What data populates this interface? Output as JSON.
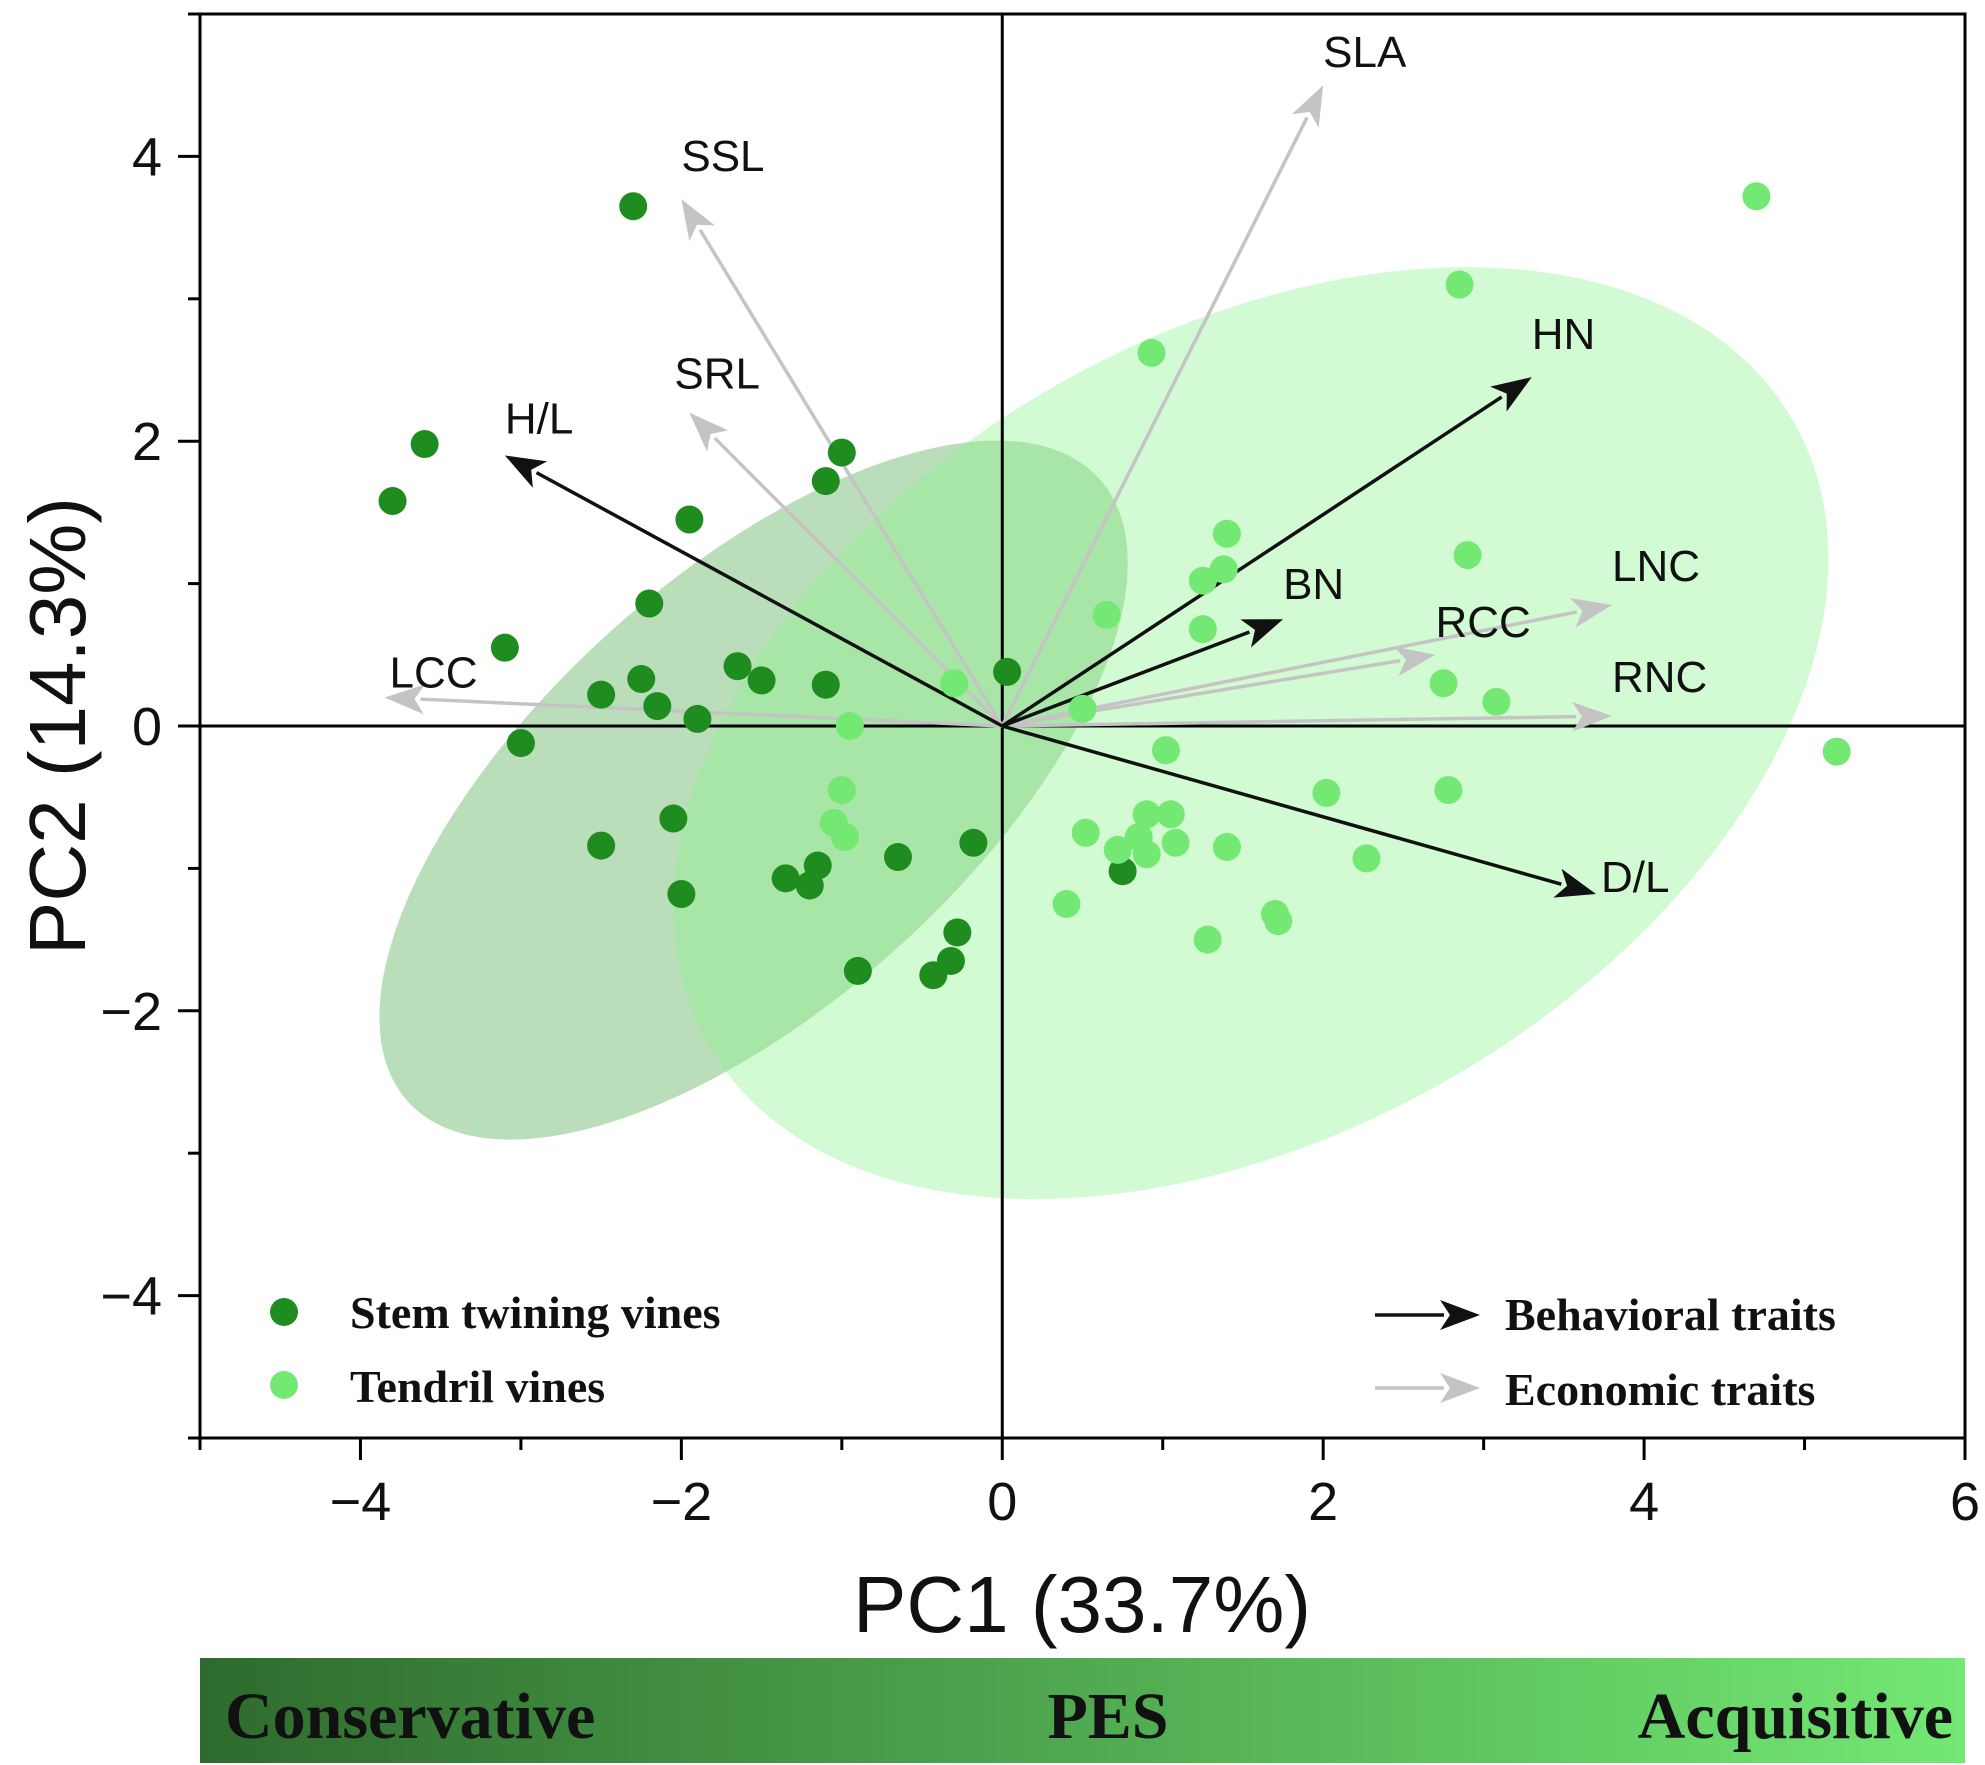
{
  "chart_data": {
    "type": "scatter",
    "xlabel": "PC1 (33.7%)",
    "ylabel": "PC2 (14.3%)",
    "xlim": [
      -5,
      6
    ],
    "ylim": [
      -5,
      5
    ],
    "x_ticks": [
      -4,
      -2,
      0,
      2,
      4,
      6
    ],
    "y_ticks": [
      -4,
      -2,
      0,
      2,
      4
    ],
    "x_tick_labels": [
      "−4",
      "−2",
      "0",
      "2",
      "4",
      "6"
    ],
    "y_tick_labels": [
      "−4",
      "−2",
      "0",
      "2",
      "4"
    ],
    "series": [
      {
        "name": "Stem twining vines",
        "color": "#1e8c1e",
        "ellipse": {
          "cx": -1.55,
          "cy": -0.45,
          "rx": 2.9,
          "ry": 1.5,
          "angle_deg": -42
        },
        "points": [
          [
            -2.3,
            3.65
          ],
          [
            -3.6,
            1.98
          ],
          [
            -3.8,
            1.58
          ],
          [
            -1.0,
            1.92
          ],
          [
            -1.1,
            1.72
          ],
          [
            -1.95,
            1.45
          ],
          [
            -2.2,
            0.86
          ],
          [
            -3.1,
            0.55
          ],
          [
            -1.65,
            0.42
          ],
          [
            -1.5,
            0.32
          ],
          [
            -2.25,
            0.33
          ],
          [
            -1.1,
            0.29
          ],
          [
            -2.5,
            0.22
          ],
          [
            -2.15,
            0.14
          ],
          [
            -1.9,
            0.05
          ],
          [
            -3.0,
            -0.12
          ],
          [
            -2.05,
            -0.65
          ],
          [
            -2.5,
            -0.84
          ],
          [
            -0.65,
            -0.92
          ],
          [
            -0.18,
            -0.82
          ],
          [
            -1.35,
            -1.07
          ],
          [
            -1.15,
            -0.98
          ],
          [
            -1.2,
            -1.12
          ],
          [
            -2.0,
            -1.18
          ],
          [
            -0.28,
            -1.45
          ],
          [
            -0.32,
            -1.65
          ],
          [
            -0.43,
            -1.75
          ],
          [
            -0.9,
            -1.72
          ],
          [
            0.03,
            0.38
          ],
          [
            0.75,
            -1.02
          ]
        ]
      },
      {
        "name": "Tendril vines",
        "color": "#73e873",
        "ellipse": {
          "cx": 1.55,
          "cy": -0.05,
          "rx": 3.9,
          "ry": 2.8,
          "angle_deg": -30
        },
        "points": [
          [
            4.7,
            3.72
          ],
          [
            2.85,
            3.1
          ],
          [
            0.93,
            2.62
          ],
          [
            1.4,
            1.35
          ],
          [
            1.38,
            1.1
          ],
          [
            1.25,
            1.02
          ],
          [
            2.9,
            1.2
          ],
          [
            0.65,
            0.78
          ],
          [
            1.25,
            0.68
          ],
          [
            2.75,
            0.3
          ],
          [
            3.08,
            0.17
          ],
          [
            0.5,
            0.12
          ],
          [
            -0.3,
            0.3
          ],
          [
            1.02,
            -0.17
          ],
          [
            5.2,
            -0.18
          ],
          [
            2.02,
            -0.47
          ],
          [
            2.78,
            -0.45
          ],
          [
            0.9,
            -0.62
          ],
          [
            1.05,
            -0.62
          ],
          [
            0.52,
            -0.75
          ],
          [
            0.85,
            -0.78
          ],
          [
            1.4,
            -0.85
          ],
          [
            1.08,
            -0.82
          ],
          [
            0.72,
            -0.87
          ],
          [
            0.9,
            -0.9
          ],
          [
            2.27,
            -0.93
          ],
          [
            0.4,
            -1.25
          ],
          [
            1.7,
            -1.32
          ],
          [
            1.72,
            -1.37
          ],
          [
            1.28,
            -1.5
          ],
          [
            -1.0,
            -0.45
          ],
          [
            -1.05,
            -0.68
          ],
          [
            -0.98,
            -0.78
          ],
          [
            -0.95,
            0.0
          ]
        ]
      }
    ],
    "vectors": [
      {
        "label": "H/L",
        "group": "behavioral",
        "x": -3.1,
        "y": 1.9
      },
      {
        "label": "HN",
        "group": "behavioral",
        "x": 3.3,
        "y": 2.45
      },
      {
        "label": "BN",
        "group": "behavioral",
        "x": 1.75,
        "y": 0.75
      },
      {
        "label": "D/L",
        "group": "behavioral",
        "x": 3.7,
        "y": -1.18
      },
      {
        "label": "SLA",
        "group": "economic",
        "x": 2.0,
        "y": 4.5
      },
      {
        "label": "SSL",
        "group": "economic",
        "x": -2.0,
        "y": 3.7
      },
      {
        "label": "SRL",
        "group": "economic",
        "x": -1.95,
        "y": 2.2
      },
      {
        "label": "LCC",
        "group": "economic",
        "x": -3.85,
        "y": 0.2
      },
      {
        "label": "RCC",
        "group": "economic",
        "x": 2.7,
        "y": 0.5
      },
      {
        "label": "LNC",
        "group": "economic",
        "x": 3.8,
        "y": 0.85
      },
      {
        "label": "RNC",
        "group": "economic",
        "x": 3.8,
        "y": 0.07
      }
    ],
    "vector_colors": {
      "behavioral": "#111111",
      "economic": "#c4c4c4"
    },
    "legend_points": [
      {
        "label": "Stem twining vines",
        "color": "#1e8c1e"
      },
      {
        "label": "Tendril vines",
        "color": "#73e873"
      }
    ],
    "legend_points_position": "bottom-left",
    "legend_vectors": [
      {
        "label": "Behavioral traits",
        "color": "#111111"
      },
      {
        "label": "Economic traits",
        "color": "#c4c4c4"
      }
    ],
    "legend_vectors_position": "bottom-right",
    "gradient_bar": {
      "labels": [
        "Conservative",
        "PES",
        "Acquisitive"
      ],
      "colors": [
        "#2e6b2e",
        "#73e873"
      ]
    },
    "grid": false
  }
}
